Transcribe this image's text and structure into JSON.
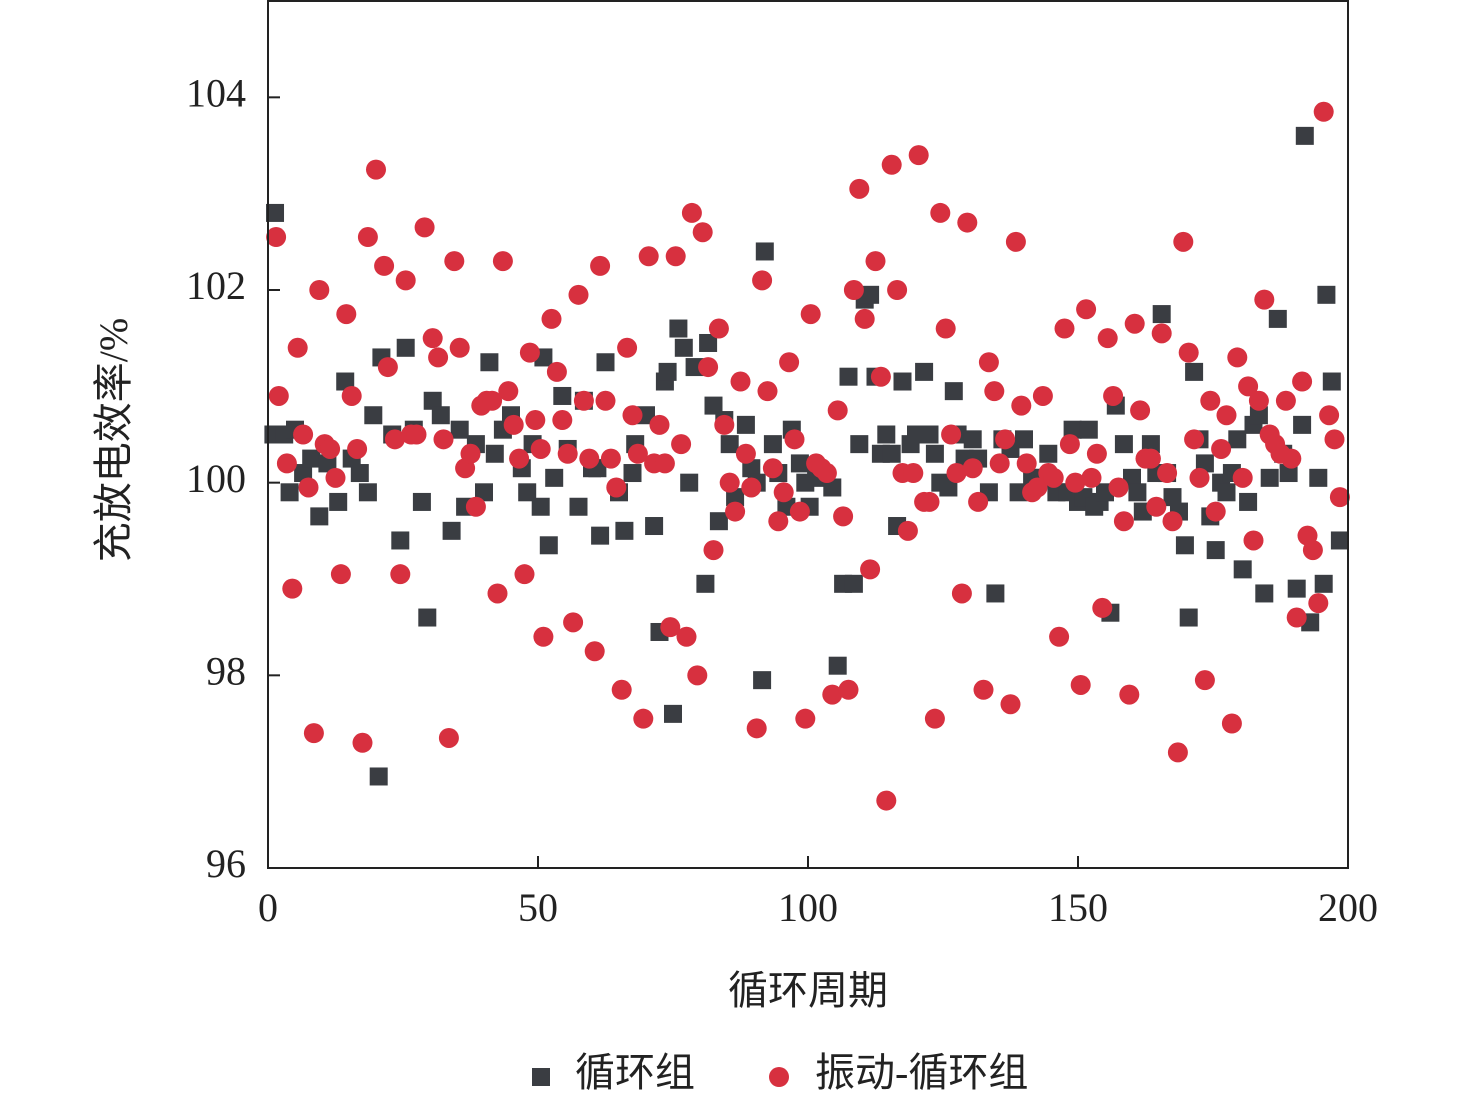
{
  "chart_data": {
    "type": "scatter",
    "xlabel": "循环周期",
    "ylabel": "充放电效率/%",
    "xlim": [
      0,
      200
    ],
    "xticks": [
      0,
      50,
      100,
      150,
      200
    ],
    "ylim": [
      96,
      105
    ],
    "yticks": [
      96,
      98,
      100,
      102,
      104
    ],
    "legend": "bottom",
    "series": [
      {
        "name": "循环组",
        "color": "#3a3d42",
        "marker": "square",
        "x": [
          1.3,
          1,
          3,
          4,
          5,
          6.5,
          8,
          9.5,
          11,
          13,
          14.3,
          15.5,
          17,
          18.5,
          19.5,
          20.5,
          21,
          23,
          24.5,
          25.5,
          27,
          28.5,
          29.5,
          30.5,
          32,
          34,
          35.5,
          36.5,
          38.5,
          40,
          41,
          42,
          43.5,
          45,
          47,
          48,
          49,
          50.5,
          51,
          52,
          53,
          54.5,
          55.5,
          57.5,
          58.5,
          60,
          61,
          61.5,
          62.5,
          65,
          66,
          67.5,
          68,
          70,
          71.5,
          72.5,
          73.5,
          74,
          75,
          76,
          77,
          78,
          79,
          81,
          81.5,
          82.5,
          83.5,
          84.5,
          85.5,
          86.5,
          88.5,
          89.5,
          90.5,
          91.5,
          92,
          93.5,
          94.5,
          96,
          97,
          98.5,
          99.5,
          100.3,
          101.5,
          102.5,
          104.5,
          105.5,
          106.5,
          107.5,
          108.5,
          109.5,
          110.5,
          111.5,
          112.5,
          113.5,
          114.5,
          115.5,
          116.5,
          117.5,
          119,
          120,
          121.5,
          122.5,
          123.5,
          124.5,
          126,
          127,
          127.7,
          129,
          130.5,
          131.5,
          133.5,
          134.7,
          136,
          137.5,
          139,
          140,
          141.5,
          143,
          144.5,
          146,
          148,
          149,
          150,
          151,
          152,
          153,
          154,
          155,
          156,
          157,
          158.5,
          160,
          161,
          162,
          163.5,
          164.5,
          165.5,
          166.5,
          167.5,
          168.7,
          169.8,
          170.5,
          171.5,
          172.5,
          173.5,
          174.5,
          175.5,
          176.5,
          177.5,
          178.5,
          179.5,
          180.5,
          181.5,
          182.5,
          183.5,
          184.5,
          185.5,
          187,
          188,
          189,
          190.5,
          191.5,
          192,
          193,
          194.5,
          195.5,
          196,
          197,
          198.5
        ],
        "values": [
          102.8,
          100.5,
          100.5,
          99.9,
          100.55,
          100.1,
          100.25,
          99.65,
          100.2,
          99.8,
          101.05,
          100.25,
          100.1,
          99.9,
          100.7,
          96.95,
          101.3,
          100.5,
          99.4,
          101.4,
          100.55,
          99.8,
          98.6,
          100.85,
          100.7,
          99.5,
          100.55,
          99.75,
          100.4,
          99.9,
          101.25,
          100.3,
          100.55,
          100.7,
          100.15,
          99.9,
          100.4,
          99.75,
          101.3,
          99.35,
          100.05,
          100.9,
          100.35,
          99.75,
          100.85,
          100.15,
          100.15,
          99.45,
          101.25,
          99.9,
          99.5,
          100.1,
          100.4,
          100.7,
          99.55,
          98.45,
          101.05,
          101.15,
          97.6,
          101.6,
          101.4,
          100,
          101.2,
          98.95,
          101.45,
          100.8,
          99.6,
          100.65,
          100.4,
          99.85,
          100.6,
          100.15,
          100,
          97.95,
          102.4,
          100.4,
          100.1,
          99.75,
          100.55,
          100.2,
          100,
          99.75,
          100.15,
          100.05,
          99.95,
          98.1,
          98.95,
          101.1,
          98.95,
          100.4,
          101.9,
          101.95,
          101.1,
          100.3,
          100.5,
          100.3,
          99.55,
          101.05,
          100.4,
          100.5,
          101.15,
          100.5,
          100.3,
          100,
          99.95,
          100.95,
          100.5,
          100.25,
          100.45,
          100.25,
          99.9,
          98.85,
          100.45,
          100.35,
          99.9,
          100.45,
          100.05,
          100.05,
          100.3,
          99.9,
          99.9,
          100.55,
          99.8,
          99.85,
          100.55,
          99.75,
          99.8,
          99.9,
          98.65,
          100.8,
          100.4,
          100.05,
          99.9,
          99.7,
          100.4,
          100.1,
          101.75,
          100.1,
          99.85,
          99.7,
          99.35,
          98.6,
          101.15,
          100.45,
          100.2,
          99.65,
          99.3,
          100,
          99.9,
          100.1,
          100.45,
          99.1,
          99.8,
          100.6,
          100.7,
          98.85,
          100.05,
          101.7,
          100.3,
          100.1,
          98.9,
          100.6,
          103.6,
          98.55,
          100.05,
          98.95,
          101.95,
          101.05,
          99.4
        ]
      },
      {
        "name": "振动-循环组",
        "color": "#d7303f",
        "marker": "circle",
        "x": [
          1.5,
          2,
          3.5,
          4.5,
          5.5,
          6.5,
          7.5,
          8.5,
          9.5,
          10.5,
          11.5,
          12.5,
          13.5,
          14.5,
          15.5,
          16.5,
          17.5,
          18.5,
          20,
          21.5,
          22.2,
          23.5,
          24.5,
          25.5,
          26.5,
          27.5,
          29,
          30.5,
          31.5,
          32.5,
          33.5,
          34.5,
          35.5,
          36.5,
          37.5,
          38.5,
          39.5,
          40.5,
          41.5,
          42.5,
          43.5,
          44.5,
          45.5,
          46.5,
          47.5,
          48.5,
          49.5,
          50.5,
          51,
          52.5,
          53.5,
          54.5,
          55.5,
          56.5,
          57.5,
          58.5,
          59.5,
          60.5,
          61.5,
          62.5,
          63.5,
          64.5,
          65.5,
          66.5,
          67.5,
          68.5,
          69.5,
          70.5,
          71.5,
          72.5,
          73.5,
          74.5,
          75.5,
          76.5,
          77.5,
          78.5,
          79.5,
          80.5,
          81.5,
          82.5,
          83.5,
          84.5,
          85.5,
          86.5,
          87.5,
          88.5,
          89.5,
          90.5,
          91.5,
          92.5,
          93.5,
          94.5,
          95.5,
          96.5,
          97.5,
          98.5,
          99.5,
          100.5,
          101.5,
          102.5,
          103.5,
          104.5,
          105.5,
          106.5,
          107.5,
          108.5,
          109.5,
          110.5,
          111.5,
          112.5,
          113.5,
          114.5,
          115.5,
          116.5,
          117.5,
          118.5,
          119.5,
          120.5,
          121.5,
          122.5,
          123.5,
          124.5,
          125.5,
          126.5,
          127.5,
          128.5,
          129.5,
          130.5,
          131.5,
          132.5,
          133.5,
          134.5,
          135.5,
          136.5,
          137.5,
          138.5,
          139.5,
          140.5,
          141.5,
          142.5,
          143.5,
          144.5,
          145.5,
          146.5,
          147.5,
          148.5,
          149.5,
          150.5,
          151.5,
          152.5,
          153.5,
          154.5,
          155.5,
          156.5,
          157.5,
          158.5,
          159.5,
          160.5,
          161.5,
          162.5,
          163.5,
          164.5,
          165.5,
          166.5,
          167.5,
          168.5,
          169.5,
          170.5,
          171.5,
          172.5,
          173.5,
          174.5,
          175.5,
          176.5,
          177.5,
          178.5,
          179.5,
          180.5,
          181.5,
          182.5,
          183.5,
          184.5,
          185.5,
          186.5,
          187.5,
          188.5,
          189.5,
          190.5,
          191.5,
          192.5,
          193.5,
          194.5,
          195.5,
          196.5,
          197.5,
          198.5
        ],
        "values": [
          102.55,
          100.9,
          100.2,
          98.9,
          101.4,
          100.5,
          99.95,
          97.4,
          102,
          100.4,
          100.35,
          100.05,
          99.05,
          101.75,
          100.9,
          100.35,
          97.3,
          102.55,
          103.25,
          102.25,
          101.2,
          100.45,
          99.05,
          102.1,
          100.5,
          100.5,
          102.65,
          101.5,
          101.3,
          100.45,
          97.35,
          102.3,
          101.4,
          100.15,
          100.3,
          99.75,
          100.8,
          100.85,
          100.85,
          98.85,
          102.3,
          100.95,
          100.6,
          100.25,
          99.05,
          101.35,
          100.65,
          100.35,
          98.4,
          101.7,
          101.15,
          100.65,
          100.3,
          98.55,
          101.95,
          100.85,
          100.25,
          98.25,
          102.25,
          100.85,
          100.25,
          99.95,
          97.85,
          101.4,
          100.7,
          100.3,
          97.55,
          102.35,
          100.2,
          100.6,
          100.2,
          98.5,
          102.35,
          100.4,
          98.4,
          102.8,
          98,
          102.6,
          101.2,
          99.3,
          101.6,
          100.6,
          100,
          99.7,
          101.05,
          100.3,
          99.95,
          97.45,
          102.1,
          100.95,
          100.15,
          99.6,
          99.9,
          101.25,
          100.45,
          99.7,
          97.55,
          101.75,
          100.2,
          100.15,
          100.1,
          97.8,
          100.75,
          99.65,
          97.85,
          102,
          103.05,
          101.7,
          99.1,
          102.3,
          101.1,
          96.7,
          103.3,
          102,
          100.1,
          99.5,
          100.1,
          103.4,
          99.8,
          99.8,
          97.55,
          102.8,
          101.6,
          100.5,
          100.1,
          98.85,
          102.7,
          100.15,
          99.8,
          97.85,
          101.25,
          100.95,
          100.2,
          100.45,
          97.7,
          102.5,
          100.8,
          100.2,
          99.9,
          99.95,
          100.9,
          100.1,
          100.05,
          98.4,
          101.6,
          100.4,
          100,
          97.9,
          101.8,
          100.05,
          100.3,
          98.7,
          101.5,
          100.9,
          99.95,
          99.6,
          97.8,
          101.65,
          100.75,
          100.25,
          100.25,
          99.75,
          101.55,
          100.1,
          99.6,
          97.2,
          102.5,
          101.35,
          100.45,
          100.05,
          97.95,
          100.85,
          99.7,
          100.35,
          100.7,
          97.5,
          101.3,
          100.05,
          101,
          99.4,
          100.85,
          101.9,
          100.5,
          100.4,
          100.3,
          100.85,
          100.25,
          98.6,
          101.05,
          99.45,
          99.3,
          98.75,
          103.85,
          100.7,
          100.45,
          99.85
        ]
      }
    ]
  }
}
